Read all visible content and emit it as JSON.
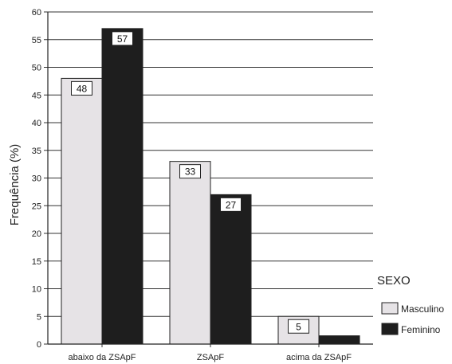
{
  "chart_data": {
    "type": "bar",
    "title": "",
    "xlabel": "",
    "ylabel": "Frequência (%)",
    "ylim": [
      0,
      60
    ],
    "yticks": [
      0,
      5,
      10,
      15,
      20,
      25,
      30,
      35,
      40,
      45,
      50,
      55,
      60
    ],
    "grid": true,
    "categories": [
      "abaixo da ZSApF",
      "ZSApF",
      "acima da ZSApF"
    ],
    "series": [
      {
        "name": "Masculino",
        "values": [
          48,
          33,
          5
        ],
        "labels": [
          "48",
          "33",
          "5"
        ],
        "color": "#e6e3e6"
      },
      {
        "name": "Feminino",
        "values": [
          57,
          27,
          1.5
        ],
        "labels": [
          "57",
          "27",
          ""
        ],
        "color": "#1e1e1e"
      }
    ],
    "legend": {
      "title": "SEXO",
      "placement": "right"
    }
  }
}
